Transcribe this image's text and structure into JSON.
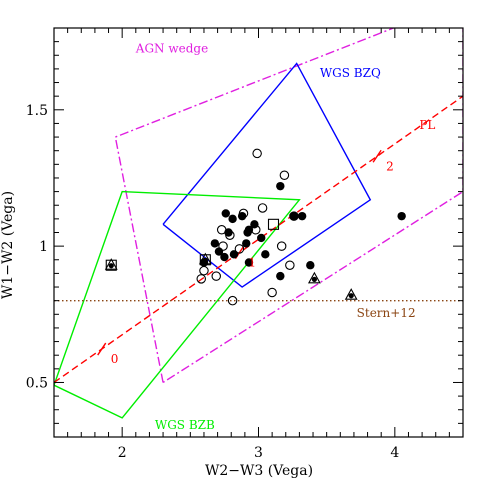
{
  "chart_data": {
    "type": "scatter",
    "xlabel": "W2−W3 (Vega)",
    "ylabel": "W1−W2 (Vega)",
    "xlim": [
      1.5,
      4.5
    ],
    "ylim": [
      0.3,
      1.8
    ],
    "xticks": [
      2,
      3,
      4
    ],
    "xtick_labels": [
      "2",
      "3",
      "4"
    ],
    "yticks": [
      0.5,
      1.0,
      1.5
    ],
    "ytick_labels": [
      "0.5",
      "1",
      "1.5"
    ],
    "grid": false,
    "legend": "none",
    "regions": [
      {
        "label": "AGN wedge",
        "color": "#e020e0",
        "style": "dash-dot",
        "points": [
          [
            2.3,
            0.5
          ],
          [
            1.95,
            1.4
          ],
          [
            4.5,
            1.9
          ],
          [
            4.5,
            1.2
          ],
          [
            2.3,
            0.5
          ]
        ]
      },
      {
        "label": "WGS BZQ",
        "color": "#0000ff",
        "style": "solid",
        "points": [
          [
            2.3,
            1.08
          ],
          [
            3.28,
            1.67
          ],
          [
            3.82,
            1.17
          ],
          [
            2.88,
            0.85
          ],
          [
            2.3,
            1.08
          ]
        ]
      },
      {
        "label": "WGS BZB",
        "color": "#00ee00",
        "style": "solid",
        "points": [
          [
            1.5,
            0.49
          ],
          [
            2.0,
            1.2
          ],
          [
            3.3,
            1.17
          ],
          [
            2.0,
            0.37
          ],
          [
            1.5,
            0.49
          ]
        ]
      }
    ],
    "lines": [
      {
        "label": "PL",
        "color": "#ff0000",
        "style": "dashed",
        "points": [
          [
            1.5,
            0.5
          ],
          [
            4.5,
            1.55
          ]
        ]
      },
      {
        "label": "Stern+12",
        "color": "#8b4513",
        "style": "dotted",
        "points": [
          [
            1.5,
            0.8
          ],
          [
            4.5,
            0.8
          ]
        ]
      }
    ],
    "pl_ticks": [
      {
        "label": "0",
        "x": 1.85
      },
      {
        "label": "1",
        "x": 2.86
      },
      {
        "label": "2",
        "x": 3.87
      }
    ],
    "annotations": [
      {
        "text": "AGN wedge",
        "color": "#e020e0",
        "x": 2.1,
        "y": 1.71
      },
      {
        "text": "WGS BZQ",
        "color": "#0000ff",
        "x": 3.45,
        "y": 1.62
      },
      {
        "text": "PL",
        "color": "#ff0000",
        "x": 4.18,
        "y": 1.43
      },
      {
        "text": "Stern+12",
        "color": "#8b4513",
        "x": 3.72,
        "y": 0.74
      },
      {
        "text": "WGS BZB",
        "color": "#00ee00",
        "x": 2.24,
        "y": 0.33
      }
    ],
    "series": [
      {
        "marker": "filled-circle",
        "points": [
          [
            2.76,
            1.12
          ],
          [
            2.81,
            1.1
          ],
          [
            2.78,
            1.05
          ],
          [
            2.68,
            1.01
          ],
          [
            2.71,
            0.98
          ],
          [
            2.75,
            0.96
          ],
          [
            2.82,
            0.97
          ],
          [
            2.88,
            1.11
          ],
          [
            2.93,
            1.06
          ],
          [
            2.97,
            1.08
          ],
          [
            2.91,
            1.01
          ],
          [
            3.02,
            1.03
          ],
          [
            3.05,
            0.97
          ],
          [
            3.16,
            1.22
          ],
          [
            3.26,
            1.11
          ],
          [
            3.32,
            1.11
          ],
          [
            2.6,
            0.94
          ],
          [
            2.93,
            0.94
          ],
          [
            3.16,
            0.89
          ],
          [
            3.38,
            0.93
          ],
          [
            4.05,
            1.11
          ],
          [
            2.92,
            1.05
          ]
        ]
      },
      {
        "marker": "open-circle",
        "points": [
          [
            2.99,
            1.34
          ],
          [
            2.89,
            1.12
          ],
          [
            3.03,
            1.14
          ],
          [
            3.19,
            1.26
          ],
          [
            3.26,
            1.11
          ],
          [
            2.69,
            0.89
          ],
          [
            2.58,
            0.88
          ],
          [
            2.6,
            0.91
          ],
          [
            2.81,
            0.8
          ],
          [
            2.79,
            1.04
          ],
          [
            2.86,
            0.99
          ],
          [
            2.98,
            1.06
          ],
          [
            3.1,
            0.83
          ],
          [
            3.17,
            1.0
          ],
          [
            3.23,
            0.93
          ],
          [
            2.73,
            1.06
          ],
          [
            2.74,
            1.0
          ]
        ]
      },
      {
        "marker": "open-square",
        "points": [
          [
            1.92,
            0.93
          ],
          [
            2.61,
            0.95
          ],
          [
            3.11,
            1.08
          ]
        ]
      },
      {
        "marker": "triangle",
        "points": [
          [
            1.92,
            0.93
          ],
          [
            2.61,
            0.95
          ],
          [
            3.41,
            0.88
          ],
          [
            3.68,
            0.82
          ]
        ]
      }
    ]
  }
}
